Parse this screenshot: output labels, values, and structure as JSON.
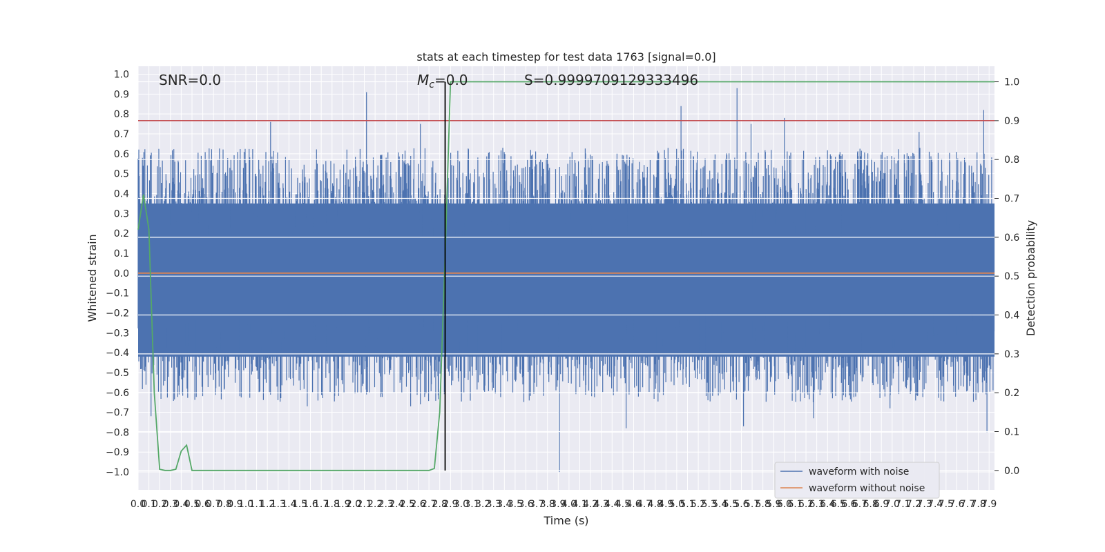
{
  "chart_data": {
    "type": "line",
    "title": "stats at each timestep for test data 1763 [signal=0.0]",
    "xlabel": "Time (s)",
    "ylabel": "Whitened strain",
    "y2label": "Detection probability",
    "xlim": [
      0.0,
      7.95
    ],
    "ylim": [
      -1.09,
      1.04
    ],
    "y2lim": [
      -0.05,
      1.04
    ],
    "x_ticks": [
      "0.0",
      "0.1",
      "0.2",
      "0.3",
      "0.4",
      "0.5",
      "0.6",
      "0.7",
      "0.8",
      "0.9",
      "1.0",
      "1.1",
      "1.2",
      "1.3",
      "1.4",
      "1.5",
      "1.6",
      "1.7",
      "1.8",
      "1.9",
      "2.0",
      "2.1",
      "2.2",
      "2.3",
      "2.4",
      "2.5",
      "2.6",
      "2.7",
      "2.8",
      "2.9",
      "3.0",
      "3.1",
      "3.2",
      "3.3",
      "3.4",
      "3.5",
      "3.6",
      "3.7",
      "3.8",
      "3.9",
      "4.0",
      "4.1",
      "4.2",
      "4.3",
      "4.4",
      "4.5",
      "4.6",
      "4.7",
      "4.8",
      "4.9",
      "5.0",
      "5.1",
      "5.2",
      "5.3",
      "5.4",
      "5.5",
      "5.6",
      "5.7",
      "5.8",
      "5.9",
      "6.0",
      "6.1",
      "6.2",
      "6.3",
      "6.4",
      "6.5",
      "6.6",
      "6.7",
      "6.8",
      "6.9",
      "7.0",
      "7.1",
      "7.2",
      "7.3",
      "7.4",
      "7.5",
      "7.6",
      "7.7",
      "7.8",
      "7.9"
    ],
    "y_ticks": [
      "1.0",
      "0.9",
      "0.8",
      "0.7",
      "0.6",
      "0.5",
      "0.4",
      "0.3",
      "0.2",
      "0.1",
      "0.0",
      "-0.1",
      "-0.2",
      "-0.3",
      "-0.4",
      "-0.5",
      "-0.6",
      "-0.7",
      "-0.8",
      "-0.9",
      "-1.0"
    ],
    "y2_ticks": [
      "1.0",
      "0.9",
      "0.8",
      "0.7",
      "0.6",
      "0.5",
      "0.4",
      "0.3",
      "0.2",
      "0.1",
      "0.0"
    ],
    "annotations": {
      "snr": "SNR=0.0",
      "mc_symbol": "M",
      "mc_sub": "c",
      "mc_value": "=0.0",
      "s": "S=0.9999709129333496"
    },
    "series": [
      {
        "name": "waveform with noise",
        "axis": "left",
        "color": "#4c72b0",
        "style": "noise",
        "envelope_typical": [
          -0.42,
          0.35
        ],
        "peaks": [
          {
            "x": 2.12,
            "y": 0.91
          },
          {
            "x": 1.23,
            "y": 0.76
          },
          {
            "x": 2.62,
            "y": 0.75
          },
          {
            "x": 5.04,
            "y": 0.84
          },
          {
            "x": 5.56,
            "y": 0.93
          },
          {
            "x": 5.69,
            "y": 0.75
          },
          {
            "x": 6.0,
            "y": 0.78
          },
          {
            "x": 7.25,
            "y": 0.71
          },
          {
            "x": 7.85,
            "y": 0.82
          }
        ],
        "troughs": [
          {
            "x": 0.12,
            "y": -0.72
          },
          {
            "x": 1.57,
            "y": -0.67
          },
          {
            "x": 2.53,
            "y": -0.67
          },
          {
            "x": 2.62,
            "y": -0.66
          },
          {
            "x": 3.91,
            "y": -1.0
          },
          {
            "x": 4.53,
            "y": -0.78
          },
          {
            "x": 5.62,
            "y": -0.77
          },
          {
            "x": 6.27,
            "y": -0.73
          },
          {
            "x": 6.98,
            "y": -0.68
          },
          {
            "x": 7.88,
            "y": -0.8
          }
        ]
      },
      {
        "name": "waveform without noise",
        "axis": "left",
        "color": "#dd8452",
        "x": [
          0.0,
          7.95
        ],
        "y": [
          0.0,
          0.0
        ]
      },
      {
        "name": "",
        "axis": "right",
        "color": "#55a868",
        "x": [
          0.0,
          0.05,
          0.1,
          0.15,
          0.2,
          0.25,
          0.3,
          0.35,
          0.4,
          0.45,
          0.5,
          0.55,
          0.6,
          2.6,
          2.7,
          2.75,
          2.8,
          2.85,
          2.9,
          7.95
        ],
        "y": [
          0.62,
          0.71,
          0.62,
          0.2,
          0.003,
          0.0,
          0.0,
          0.003,
          0.05,
          0.065,
          0.0,
          0.0,
          0.0,
          0.0,
          0.0,
          0.005,
          0.15,
          0.55,
          1.0,
          1.0
        ]
      }
    ],
    "threshold": {
      "axis": "right",
      "y": 0.9,
      "color": "#c44e52"
    },
    "marker_line": {
      "x": 2.85,
      "y_from": 0.0,
      "y_to": 1.0,
      "axis": "right",
      "color": "#000000"
    },
    "legend": {
      "position": "lower-right"
    },
    "grid": true,
    "background": "#eaeaf2"
  }
}
